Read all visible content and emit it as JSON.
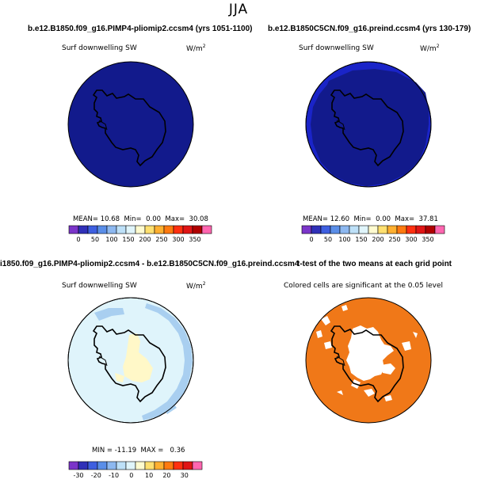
{
  "figure": {
    "season": "JJA"
  },
  "chart_data": [
    {
      "type": "heatmap",
      "title": "b.e12.B1850.f09_g16.PIMP4-pliomip2.ccsm4 (yrs 1051-1100)",
      "variable": "Surf downwelling SW",
      "units_prefix": "W/m",
      "units_exp": "2",
      "stats": {
        "mean_label": "MEAN=",
        "mean": "10.68",
        "min_label": "Min=",
        "min": "0.00",
        "max_label": "Max=",
        "max": "30.08"
      },
      "colorbar": {
        "ticks": [
          "0",
          "50",
          "100",
          "150",
          "200",
          "250",
          "300",
          "350"
        ],
        "colors": [
          "#7b35c9",
          "#3030b8",
          "#3e5fe0",
          "#5a8ee8",
          "#8db8f0",
          "#bde0f8",
          "#e0f5fb",
          "#fffbd0",
          "#ffe070",
          "#ffb030",
          "#ff7a10",
          "#ff3010",
          "#e01515",
          "#b00000",
          "#ff66b0"
        ]
      },
      "map": {
        "ocean_color": "#121a8c",
        "inner_color": "#121a8c",
        "has_ring": false
      }
    },
    {
      "type": "heatmap",
      "title": "b.e12.B1850C5CN.f09_g16.preind.ccsm4 (yrs 130-179)",
      "variable": "Surf downwelling SW",
      "units_prefix": "W/m",
      "units_exp": "2",
      "stats": {
        "mean_label": "MEAN=",
        "mean": "12.60",
        "min_label": "Min=",
        "min": "0.00",
        "max_label": "Max=",
        "max": "37.81"
      },
      "colorbar": {
        "ticks": [
          "0",
          "50",
          "100",
          "150",
          "200",
          "250",
          "300",
          "350"
        ],
        "colors": [
          "#7b35c9",
          "#3030b8",
          "#3e5fe0",
          "#5a8ee8",
          "#8db8f0",
          "#bde0f8",
          "#e0f5fb",
          "#fffbd0",
          "#ffe070",
          "#ffb030",
          "#ff7a10",
          "#ff3010",
          "#e01515",
          "#b00000",
          "#ff66b0"
        ]
      },
      "map": {
        "ocean_color": "#1a24c8",
        "inner_color": "#121a8c",
        "has_ring": true
      }
    },
    {
      "type": "heatmap",
      "title": "i1850.f09_g16.PIMP4-pliomip2.ccsm4 - b.e12.B1850C5CN.f09_g16.preind.ccsm4",
      "variable": "Surf downwelling SW",
      "units_prefix": "W/m",
      "units_exp": "2",
      "stats": {
        "min_label": "MIN =",
        "min": "-11.19",
        "max_label": "MAX =",
        "max": "0.36"
      },
      "colorbar": {
        "ticks": [
          "-30",
          "-20",
          "-10",
          "0",
          "10",
          "20",
          "30"
        ],
        "colors": [
          "#7b35c9",
          "#3030b8",
          "#3e5fe0",
          "#5a8ee8",
          "#8db8f0",
          "#bde0f8",
          "#e0f5fb",
          "#fffbd0",
          "#ffe070",
          "#ffb030",
          "#ff7a10",
          "#ff3010",
          "#e01515",
          "#ff66b0"
        ]
      },
      "map": {
        "ocean_color": "#dff4fb",
        "band_color": "#a9cff0",
        "land_anomaly_color": "#fff8c8"
      }
    },
    {
      "type": "heatmap",
      "title": "t-test of the two means at each grid point",
      "subtitle": "Colored cells are significant at the 0.05 level",
      "map": {
        "significant_color": "#f07818",
        "nonsignificant_color": "#ffffff"
      }
    }
  ]
}
